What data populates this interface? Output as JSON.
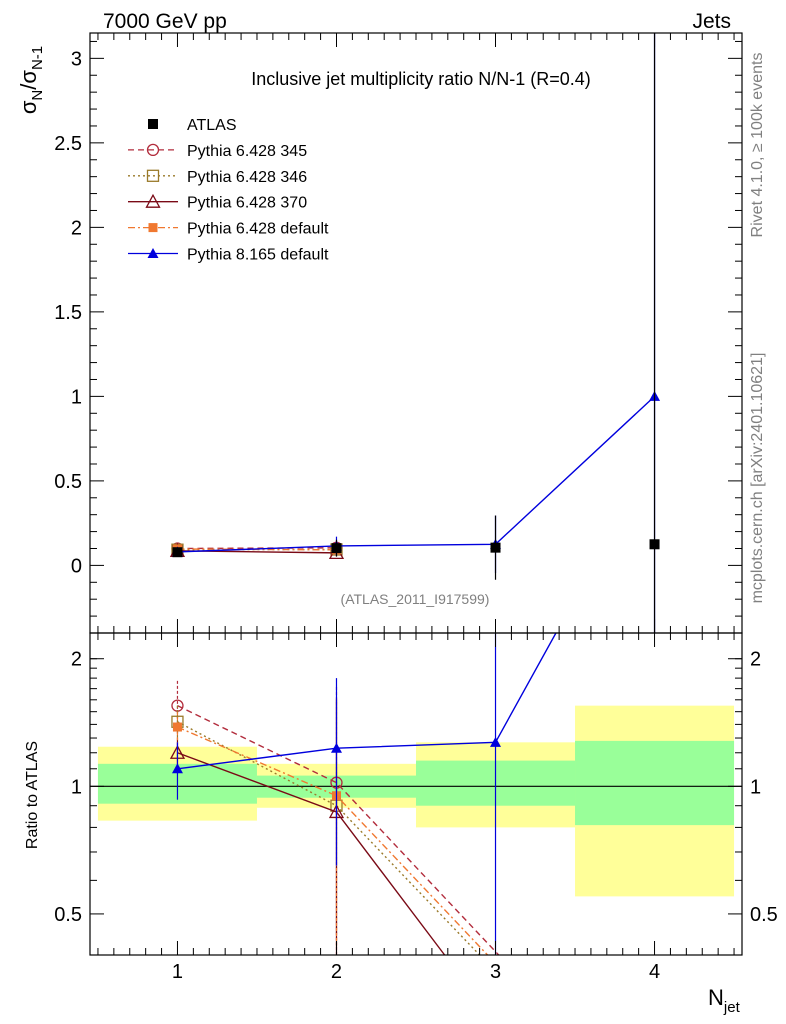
{
  "header": {
    "left": "7000 GeV pp",
    "right": "Jets"
  },
  "side_text": {
    "rivet": "Rivet 4.1.0, ≥ 100k events",
    "mcplots": "mcplots.cern.ch [arXiv:2401.10621]"
  },
  "chart_data": [
    {
      "type": "line",
      "panel": "main",
      "title": "Inclusive jet multiplicity ratio N/N-1 (R=0.4)",
      "ylabel": "σ_N/σ_N-1",
      "xlabel": "N_jet",
      "xlim": [
        0.45,
        4.55
      ],
      "ylim": [
        -0.4,
        3.15
      ],
      "x_ticks": [
        "1",
        "2",
        "3",
        "4"
      ],
      "y_ticks": [
        "0",
        "0.5",
        "1",
        "1.5",
        "2",
        "2.5",
        "3"
      ],
      "analysis_tag": "(ATLAS_2011_I917599)",
      "data": {
        "name": "ATLAS",
        "color": "#000000",
        "x": [
          1,
          2,
          3,
          4
        ],
        "y": [
          0.078,
          0.102,
          0.105,
          0.125
        ],
        "err": [
          0.012,
          0.05,
          0.19,
          3.5
        ]
      },
      "series": [
        {
          "name": "Pythia 6.428 345",
          "color": "#b22c3c",
          "dash": "6,4",
          "marker": "circle-open",
          "x": [
            1,
            2
          ],
          "y": [
            0.1,
            0.104
          ],
          "err": [
            0.008,
            0.02
          ]
        },
        {
          "name": "Pythia 6.428 346",
          "color": "#9a7a2a",
          "dash": "2,3",
          "marker": "square-open",
          "x": [
            1,
            2
          ],
          "y": [
            0.093,
            0.094
          ],
          "err": [
            0.008,
            0.02
          ]
        },
        {
          "name": "Pythia 6.428 370",
          "color": "#7a0a16",
          "dash": "",
          "marker": "triangle-open",
          "x": [
            1,
            2
          ],
          "y": [
            0.086,
            0.074
          ],
          "err": [
            0.008,
            0.02
          ]
        },
        {
          "name": "Pythia 6.428 default",
          "color": "#f07830",
          "dash": "7,3,2,3",
          "marker": "square-filled",
          "x": [
            1,
            2
          ],
          "y": [
            0.097,
            0.092
          ],
          "err": [
            0.008,
            0.02
          ]
        },
        {
          "name": "Pythia 8.165 default",
          "color": "#0000dd",
          "dash": "",
          "marker": "triangle-filled",
          "x": [
            1,
            2,
            3,
            4
          ],
          "y": [
            0.08,
            0.115,
            0.125,
            1.0
          ],
          "err": [
            0.008,
            0.055,
            0.17,
            3.0
          ]
        }
      ]
    },
    {
      "type": "line",
      "panel": "ratio",
      "ylabel": "Ratio to ATLAS",
      "xlabel": "N_jet",
      "xlim": [
        0.45,
        4.55
      ],
      "ylim": [
        0.4,
        2.3
      ],
      "y_ticks_left": [
        "0.5",
        "1",
        "2"
      ],
      "y_ticks_right": [
        "0.5",
        "1",
        "2"
      ],
      "bands": [
        {
          "x0": 0.5,
          "x1": 1.5,
          "yellow": [
            0.83,
            1.24
          ],
          "green": [
            0.91,
            1.13
          ]
        },
        {
          "x0": 1.5,
          "x1": 2.5,
          "yellow": [
            0.89,
            1.13
          ],
          "green": [
            0.94,
            1.06
          ]
        },
        {
          "x0": 2.5,
          "x1": 3.5,
          "yellow": [
            0.8,
            1.27
          ],
          "green": [
            0.9,
            1.15
          ]
        },
        {
          "x0": 3.5,
          "x1": 4.5,
          "yellow": [
            0.55,
            1.55
          ],
          "green": [
            0.81,
            1.28
          ]
        }
      ],
      "series": [
        {
          "name": "Pythia 6.428 345",
          "x": [
            1,
            2,
            3.02
          ],
          "y": [
            1.55,
            1.02,
            0.4
          ],
          "err_lo": [
            1.33,
            0.38,
            0
          ],
          "err_hi": [
            1.78,
            1.72,
            0
          ]
        },
        {
          "name": "Pythia 6.428 346",
          "x": [
            1,
            2,
            2.9
          ],
          "y": [
            1.42,
            0.9,
            0.4
          ],
          "err_lo": [
            1.3,
            0.45,
            0
          ],
          "err_hi": [
            1.55,
            1.6,
            0
          ]
        },
        {
          "name": "Pythia 6.428 370",
          "x": [
            1,
            2,
            2.68
          ],
          "y": [
            1.2,
            0.87,
            0.4
          ],
          "err_lo": [
            1.1,
            0.4,
            0
          ],
          "err_hi": [
            1.3,
            1.6,
            0
          ]
        },
        {
          "name": "Pythia 6.428 default",
          "x": [
            1,
            2,
            2.95
          ],
          "y": [
            1.38,
            0.95,
            0.4
          ],
          "err_lo": [
            1.25,
            0.42,
            0
          ],
          "err_hi": [
            1.5,
            1.62,
            0
          ]
        },
        {
          "name": "Pythia 8.165 default",
          "x": [
            1,
            2,
            3,
            3.38
          ],
          "y": [
            1.1,
            1.23,
            1.27,
            2.3
          ],
          "err_lo": [
            0.93,
            0.65,
            0.4,
            0
          ],
          "err_hi": [
            1.27,
            1.8,
            2.3,
            0
          ]
        }
      ]
    }
  ]
}
